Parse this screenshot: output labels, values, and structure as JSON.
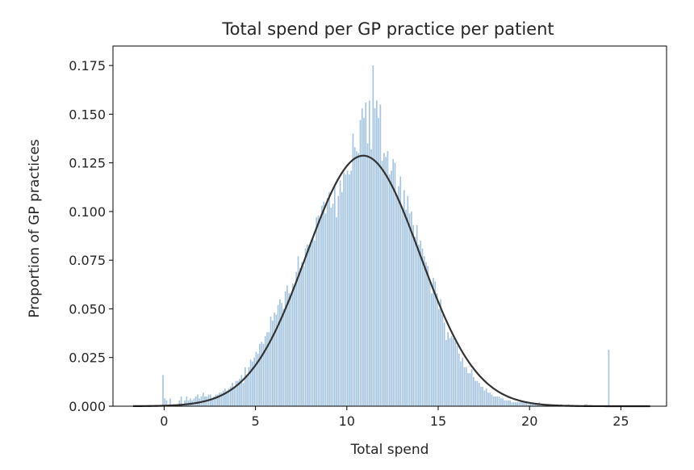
{
  "chart_data": {
    "type": "bar",
    "title": "Total spend per GP practice per patient",
    "xlabel": "Total spend",
    "ylabel": "Proportion of GP practices",
    "xlim": [
      -2.8,
      27.5
    ],
    "ylim": [
      0.0,
      0.185
    ],
    "xticks": [
      0,
      5,
      10,
      15,
      20,
      25
    ],
    "xtick_labels": [
      "0",
      "5",
      "10",
      "15",
      "20",
      "25"
    ],
    "yticks": [
      0.0,
      0.025,
      0.05,
      0.075,
      0.1,
      0.125,
      0.15,
      0.175
    ],
    "ytick_labels": [
      "0.000",
      "0.025",
      "0.050",
      "0.075",
      "0.100",
      "0.125",
      "0.150",
      "0.175"
    ],
    "grid": false,
    "series": [
      {
        "kind": "histogram",
        "color": "#a4c4df",
        "bin_width": 0.1,
        "bin_starts": [
          -0.1,
          0.0,
          0.1,
          0.2,
          0.3,
          0.4,
          0.5,
          0.6,
          0.7,
          0.8,
          0.9,
          1.0,
          1.1,
          1.2,
          1.3,
          1.4,
          1.5,
          1.6,
          1.7,
          1.8,
          1.9,
          2.0,
          2.1,
          2.2,
          2.3,
          2.4,
          2.5,
          2.6,
          2.7,
          2.8,
          2.9,
          3.0,
          3.1,
          3.2,
          3.3,
          3.4,
          3.5,
          3.6,
          3.7,
          3.8,
          3.9,
          4.0,
          4.1,
          4.2,
          4.3,
          4.4,
          4.5,
          4.6,
          4.7,
          4.8,
          4.9,
          5.0,
          5.1,
          5.2,
          5.3,
          5.4,
          5.5,
          5.6,
          5.7,
          5.8,
          5.9,
          6.0,
          6.1,
          6.2,
          6.3,
          6.4,
          6.5,
          6.6,
          6.7,
          6.8,
          6.9,
          7.0,
          7.1,
          7.2,
          7.3,
          7.4,
          7.5,
          7.6,
          7.7,
          7.8,
          7.9,
          8.0,
          8.1,
          8.2,
          8.3,
          8.4,
          8.5,
          8.6,
          8.7,
          8.8,
          8.9,
          9.0,
          9.1,
          9.2,
          9.3,
          9.4,
          9.5,
          9.6,
          9.7,
          9.8,
          9.9,
          10.0,
          10.1,
          10.2,
          10.3,
          10.4,
          10.5,
          10.6,
          10.7,
          10.8,
          10.9,
          11.0,
          11.1,
          11.2,
          11.3,
          11.4,
          11.5,
          11.6,
          11.7,
          11.8,
          11.9,
          12.0,
          12.1,
          12.2,
          12.3,
          12.4,
          12.5,
          12.6,
          12.7,
          12.8,
          12.9,
          13.0,
          13.1,
          13.2,
          13.3,
          13.4,
          13.5,
          13.6,
          13.7,
          13.8,
          13.9,
          14.0,
          14.1,
          14.2,
          14.3,
          14.4,
          14.5,
          14.6,
          14.7,
          14.8,
          14.9,
          15.0,
          15.1,
          15.2,
          15.3,
          15.4,
          15.5,
          15.6,
          15.7,
          15.8,
          15.9,
          16.0,
          16.1,
          16.2,
          16.3,
          16.4,
          16.5,
          16.6,
          16.7,
          16.8,
          16.9,
          17.0,
          17.1,
          17.2,
          17.3,
          17.4,
          17.5,
          17.6,
          17.7,
          17.8,
          17.9,
          18.0,
          18.1,
          18.2,
          18.3,
          18.4,
          18.5,
          18.6,
          18.7,
          18.8,
          18.9,
          19.0,
          19.1,
          19.2,
          19.3,
          19.4,
          19.5,
          19.6,
          19.7,
          19.8,
          19.9,
          20.0,
          20.1,
          20.2,
          20.3,
          20.4,
          20.5,
          20.6,
          20.7,
          20.8,
          20.9,
          21.0,
          21.1,
          21.2,
          21.3,
          21.4,
          21.5,
          21.6,
          21.7,
          21.8,
          21.9,
          22.0,
          22.1,
          22.2,
          22.3,
          22.4,
          22.5,
          22.6,
          22.7,
          22.8,
          22.9,
          23.0,
          23.1,
          23.2,
          23.3,
          23.4,
          23.5,
          23.6,
          23.7,
          23.8,
          23.9,
          24.0,
          24.1,
          24.2,
          24.3,
          24.4,
          24.5,
          24.6,
          24.7,
          24.8,
          24.9
        ],
        "values": [
          0.016,
          0.004,
          0.003,
          0.0,
          0.004,
          0.0,
          0.001,
          0.0,
          0.001,
          0.003,
          0.005,
          0.001,
          0.003,
          0.005,
          0.003,
          0.004,
          0.003,
          0.004,
          0.005,
          0.006,
          0.004,
          0.005,
          0.007,
          0.005,
          0.005,
          0.006,
          0.006,
          0.004,
          0.005,
          0.006,
          0.006,
          0.007,
          0.007,
          0.008,
          0.009,
          0.008,
          0.009,
          0.01,
          0.012,
          0.01,
          0.013,
          0.013,
          0.014,
          0.016,
          0.012,
          0.02,
          0.016,
          0.02,
          0.024,
          0.023,
          0.025,
          0.028,
          0.027,
          0.032,
          0.033,
          0.032,
          0.036,
          0.038,
          0.038,
          0.046,
          0.044,
          0.048,
          0.047,
          0.052,
          0.055,
          0.053,
          0.05,
          0.059,
          0.062,
          0.058,
          0.057,
          0.063,
          0.062,
          0.069,
          0.077,
          0.071,
          0.074,
          0.072,
          0.081,
          0.083,
          0.083,
          0.084,
          0.086,
          0.085,
          0.097,
          0.098,
          0.097,
          0.103,
          0.105,
          0.099,
          0.107,
          0.11,
          0.102,
          0.104,
          0.113,
          0.097,
          0.108,
          0.116,
          0.11,
          0.12,
          0.119,
          0.121,
          0.119,
          0.121,
          0.14,
          0.133,
          0.131,
          0.13,
          0.147,
          0.153,
          0.148,
          0.156,
          0.135,
          0.157,
          0.132,
          0.175,
          0.153,
          0.157,
          0.148,
          0.155,
          0.126,
          0.13,
          0.128,
          0.131,
          0.119,
          0.121,
          0.127,
          0.125,
          0.108,
          0.113,
          0.118,
          0.102,
          0.111,
          0.101,
          0.108,
          0.099,
          0.1,
          0.093,
          0.087,
          0.093,
          0.083,
          0.085,
          0.081,
          0.077,
          0.074,
          0.072,
          0.064,
          0.058,
          0.066,
          0.064,
          0.058,
          0.05,
          0.055,
          0.047,
          0.043,
          0.034,
          0.038,
          0.035,
          0.036,
          0.035,
          0.033,
          0.031,
          0.027,
          0.023,
          0.025,
          0.02,
          0.02,
          0.017,
          0.017,
          0.019,
          0.015,
          0.013,
          0.013,
          0.012,
          0.01,
          0.01,
          0.008,
          0.009,
          0.007,
          0.007,
          0.006,
          0.005,
          0.005,
          0.005,
          0.005,
          0.004,
          0.004,
          0.003,
          0.003,
          0.003,
          0.003,
          0.002,
          0.002,
          0.002,
          0.002,
          0.002,
          0.003,
          0.002,
          0.002,
          0.002,
          0.001,
          0.002,
          0.001,
          0.001,
          0.001,
          0.001,
          0.002,
          0.001,
          0.001,
          0.001,
          0.001,
          0.0,
          0.001,
          0.001,
          0.0,
          0.0,
          0.001,
          0.0,
          0.001,
          0.0,
          0.0,
          0.0,
          0.001,
          0.0,
          0.0,
          0.0,
          0.0,
          0.0,
          0.0,
          0.0,
          0.0,
          0.001,
          0.001,
          0.0,
          0.0,
          0.0,
          0.0,
          0.0,
          0.0,
          0.0,
          0.0,
          0.0,
          0.0,
          0.0,
          0.029
        ]
      },
      {
        "kind": "normal-fit-line",
        "color": "#333333",
        "mean": 10.9,
        "sd": 3.1,
        "x_range": [
          -1.7,
          26.6
        ]
      }
    ]
  }
}
